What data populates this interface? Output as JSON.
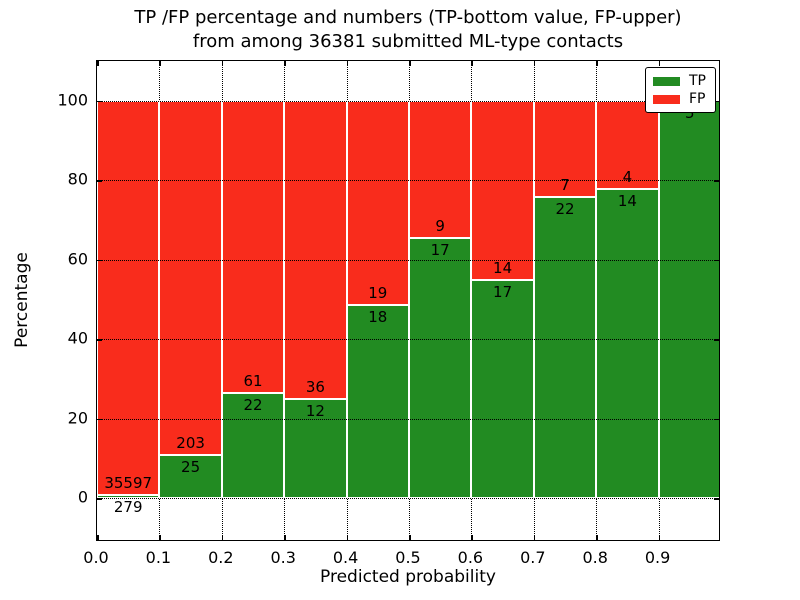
{
  "chart_data": {
    "type": "bar",
    "mode": "percentage-stacked",
    "title_line1": "TP /FP percentage and numbers (TP-bottom value, FP-upper)",
    "title_line2": "from among 36381 submitted ML-type contacts",
    "xlabel": "Predicted probability",
    "ylabel": "Percentage",
    "x_ticks": [
      "0.0",
      "0.1",
      "0.2",
      "0.3",
      "0.4",
      "0.5",
      "0.6",
      "0.7",
      "0.8",
      "0.9"
    ],
    "y_ticks": [
      "0",
      "20",
      "40",
      "60",
      "80",
      "100"
    ],
    "xlim": [
      0.0,
      1.0
    ],
    "ylim": [
      -11,
      110
    ],
    "grid": true,
    "legend_position": "upper-right",
    "colors": {
      "tp": "#228b22",
      "fp": "#f92c1c",
      "frame": "#000000",
      "background": "#ffffff"
    },
    "legend": [
      {
        "name": "TP",
        "color": "#228b22"
      },
      {
        "name": "FP",
        "color": "#f92c1c"
      }
    ],
    "bins": [
      {
        "x0": 0.0,
        "x1": 0.1,
        "tp": 279,
        "fp": 35597
      },
      {
        "x0": 0.1,
        "x1": 0.2,
        "tp": 25,
        "fp": 203
      },
      {
        "x0": 0.2,
        "x1": 0.3,
        "tp": 22,
        "fp": 61
      },
      {
        "x0": 0.3,
        "x1": 0.4,
        "tp": 12,
        "fp": 36
      },
      {
        "x0": 0.4,
        "x1": 0.5,
        "tp": 18,
        "fp": 19
      },
      {
        "x0": 0.5,
        "x1": 0.6,
        "tp": 17,
        "fp": 9
      },
      {
        "x0": 0.6,
        "x1": 0.7,
        "tp": 17,
        "fp": 14
      },
      {
        "x0": 0.7,
        "x1": 0.8,
        "tp": 22,
        "fp": 7
      },
      {
        "x0": 0.8,
        "x1": 0.9,
        "tp": 14,
        "fp": 4
      },
      {
        "x0": 0.9,
        "x1": 1.0,
        "tp": 5,
        "fp": null
      }
    ]
  }
}
